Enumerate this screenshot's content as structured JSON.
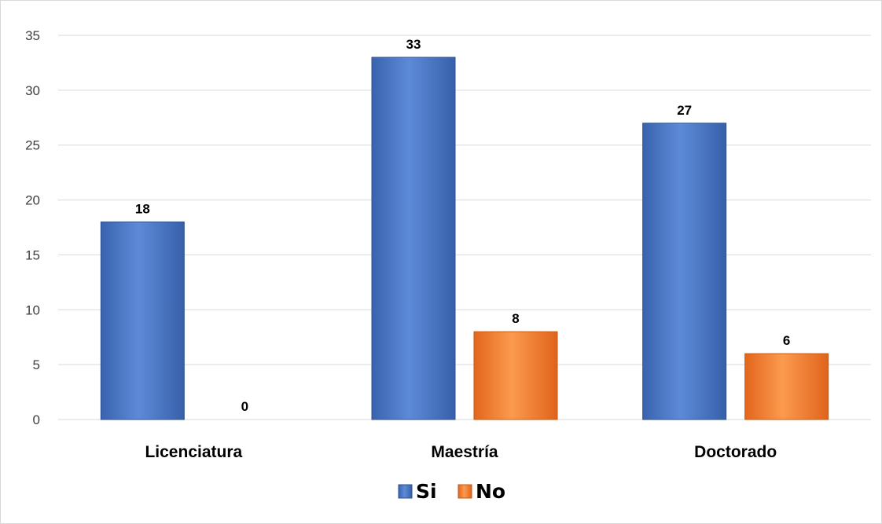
{
  "chart_data": {
    "type": "bar",
    "categories": [
      "Licenciatura",
      "Maestría",
      "Doctorado"
    ],
    "series": [
      {
        "name": "Si",
        "values": [
          18,
          33,
          27
        ],
        "color": "#4472c4"
      },
      {
        "name": "No",
        "values": [
          0,
          8,
          6
        ],
        "color": "#ed7d31"
      }
    ],
    "ylim": [
      0,
      35
    ],
    "yticks": [
      0,
      5,
      10,
      15,
      20,
      25,
      30,
      35
    ],
    "grid": true,
    "legend": "bottom",
    "data_labels": true
  }
}
